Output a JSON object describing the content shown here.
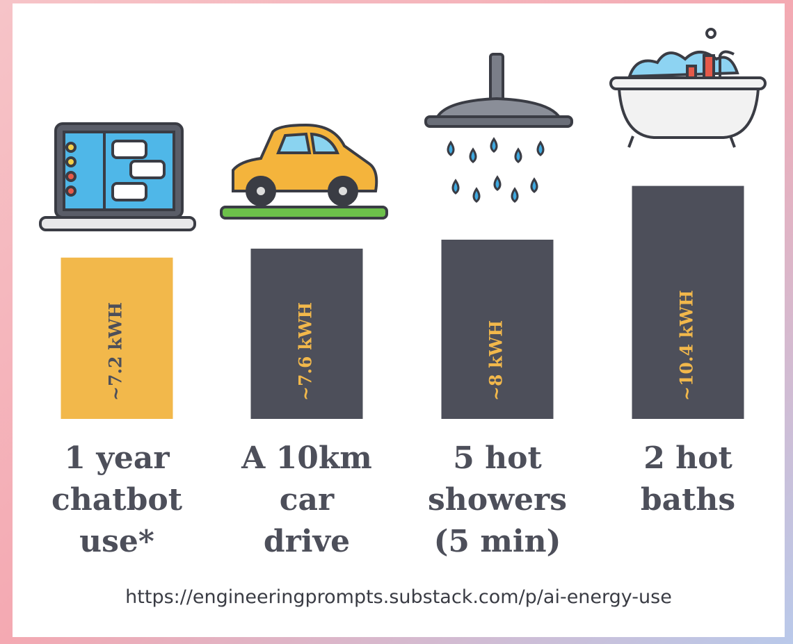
{
  "chart_data": {
    "type": "bar",
    "categories": [
      [
        "1 year",
        "chatbot",
        "use*"
      ],
      [
        "A 10km",
        "car",
        "drive"
      ],
      [
        "5 hot",
        "showers",
        "(5 min)"
      ],
      [
        "2 hot",
        "baths"
      ]
    ],
    "values": [
      7.2,
      7.6,
      8,
      10.4
    ],
    "value_labels": [
      "~7.2 kWH",
      "~7.6 kWH",
      "~8 kWH",
      "~10.4 kWH"
    ],
    "colors": [
      "#f2b84b",
      "#4d4f5a",
      "#4d4f5a",
      "#4d4f5a"
    ],
    "source": "https://engineeringprompts.substack.com/p/ai-energy-use"
  }
}
